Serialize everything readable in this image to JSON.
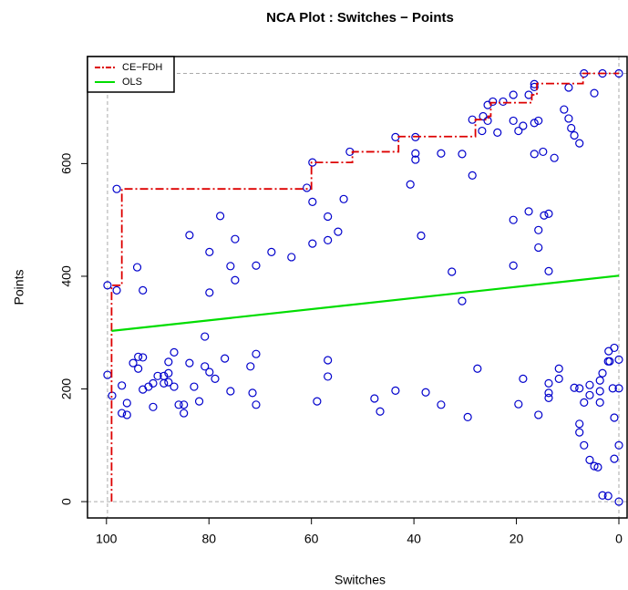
{
  "chart_data": {
    "type": "scatter",
    "title": "NCA Plot : Switches − Points",
    "x_label": "Switches",
    "y_label": "Points",
    "xlim": [
      103.7,
      -1.6
    ],
    "ylim": [
      -29,
      790
    ],
    "xticks": [
      100,
      80,
      60,
      40,
      20,
      0
    ],
    "yticks": [
      0,
      200,
      400,
      600
    ],
    "points": {
      "color": "#0000cc",
      "x": [
        99.8,
        99.8,
        98.9,
        98,
        98,
        97,
        97,
        96,
        96,
        94,
        92.9,
        94.8,
        93.8,
        93.8,
        92.9,
        92.9,
        91.8,
        90.9,
        90.9,
        90,
        88.8,
        88.8,
        87.9,
        87.9,
        87.9,
        86.8,
        86.8,
        85.9,
        84.9,
        84.9,
        83.8,
        83.8,
        82.9,
        81.9,
        80.8,
        80.8,
        79.9,
        79.9,
        79.9,
        78.8,
        77.8,
        76.9,
        75.8,
        75.8,
        74.9,
        74.9,
        71.9,
        71.5,
        70.8,
        70.8,
        70.8,
        67.8,
        63.9,
        60.9,
        59.8,
        59.8,
        59.8,
        58.9,
        56.8,
        56.8,
        56.8,
        56.8,
        54.8,
        53.7,
        52.5,
        47.7,
        46.6,
        43.6,
        43.6,
        40.7,
        39.7,
        39.7,
        39.7,
        38.6,
        37.7,
        34.7,
        34.7,
        32.6,
        30.6,
        30.6,
        29.5,
        28.6,
        28.6,
        27.6,
        26.7,
        26.5,
        25.6,
        25.6,
        24.6,
        23.7,
        22.6,
        20.6,
        20.6,
        20.6,
        20.6,
        19.6,
        19.6,
        18.7,
        18.7,
        17.6,
        17.6,
        16.5,
        16.5,
        16.5,
        16.5,
        15.7,
        15.7,
        15.7,
        15.7,
        14.8,
        14.6,
        13.7,
        13.7,
        13.7,
        13.7,
        13.7,
        12.6,
        11.7,
        11.7,
        10.7,
        9.8,
        9.8,
        9.3,
        8.7,
        8.7,
        7.7,
        7.7,
        7.7,
        7.7,
        6.8,
        6.8,
        6.8,
        5.7,
        5.7,
        5.7,
        4.8,
        4.8,
        3.7,
        3.7,
        3.7,
        4.1,
        3.2,
        3.2,
        3.2,
        2.1,
        2.1,
        1.8,
        0.9,
        0.9,
        0.9,
        0,
        0,
        0,
        0,
        0,
        1.2,
        2
      ],
      "y": [
        384,
        225,
        188,
        555,
        375,
        206,
        157,
        175,
        154,
        416,
        375,
        246,
        236,
        257,
        256,
        199,
        204,
        168,
        210,
        223,
        223,
        210,
        248,
        228,
        212,
        265,
        204,
        172,
        172,
        157,
        246,
        473,
        204,
        178,
        293,
        240,
        230,
        443,
        371,
        218,
        507,
        254,
        196,
        418,
        466,
        393,
        240,
        193,
        172,
        262,
        419,
        443,
        434,
        557,
        458,
        532,
        602,
        178,
        464,
        506,
        222,
        251,
        479,
        537,
        621,
        183,
        160,
        197,
        647,
        563,
        647,
        618,
        607,
        472,
        194,
        172,
        618,
        408,
        356,
        617,
        150,
        579,
        678,
        236,
        658,
        684,
        676,
        704,
        710,
        655,
        710,
        722,
        676,
        500,
        419,
        173,
        658,
        667,
        218,
        515,
        722,
        741,
        736,
        672,
        617,
        154,
        482,
        451,
        676,
        621,
        508,
        511,
        409,
        210,
        193,
        184,
        610,
        236,
        218,
        696,
        735,
        680,
        663,
        650,
        202,
        636,
        201,
        138,
        123,
        760,
        176,
        100,
        74,
        207,
        189,
        725,
        63,
        215,
        196,
        176,
        61,
        760,
        228,
        11,
        10,
        249,
        249,
        273,
        149,
        76,
        760,
        252,
        201,
        100,
        0,
        201,
        267
      ]
    },
    "series": [
      {
        "name": "CE−FDH",
        "color": "#dd0000",
        "x": [
          99,
          99,
          97,
          97,
          60,
          60,
          52,
          52,
          43,
          43,
          28,
          28,
          25.5,
          25.5,
          25,
          25,
          17,
          17,
          16,
          16,
          7,
          7,
          0
        ],
        "y": [
          0,
          384,
          384,
          555,
          555,
          602,
          602,
          621,
          621,
          648,
          648,
          678,
          678,
          684,
          684,
          708,
          708,
          722,
          722,
          742,
          742,
          760,
          760
        ]
      },
      {
        "name": "OLS",
        "color": "#00dd00",
        "x": [
          99,
          0
        ],
        "y": [
          303,
          401
        ]
      }
    ],
    "legend": "top-left"
  }
}
